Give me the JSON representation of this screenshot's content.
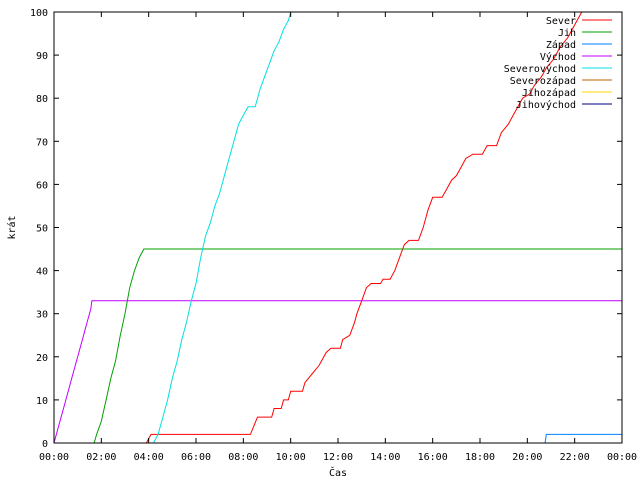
{
  "chart_data": {
    "type": "line",
    "xlabel": "Čas",
    "ylabel": "krát",
    "xlim": [
      0,
      24
    ],
    "ylim": [
      0,
      100
    ],
    "x_ticks": [
      {
        "value": 0,
        "label": "00:00"
      },
      {
        "value": 2,
        "label": "02:00"
      },
      {
        "value": 4,
        "label": "04:00"
      },
      {
        "value": 6,
        "label": "06:00"
      },
      {
        "value": 8,
        "label": "08:00"
      },
      {
        "value": 10,
        "label": "10:00"
      },
      {
        "value": 12,
        "label": "12:00"
      },
      {
        "value": 14,
        "label": "14:00"
      },
      {
        "value": 16,
        "label": "16:00"
      },
      {
        "value": 18,
        "label": "18:00"
      },
      {
        "value": 20,
        "label": "20:00"
      },
      {
        "value": 22,
        "label": "22:00"
      },
      {
        "value": 24,
        "label": "00:00"
      }
    ],
    "y_ticks": [
      {
        "value": 0,
        "label": "0"
      },
      {
        "value": 10,
        "label": "10"
      },
      {
        "value": 20,
        "label": "20"
      },
      {
        "value": 30,
        "label": "30"
      },
      {
        "value": 40,
        "label": "40"
      },
      {
        "value": 50,
        "label": "50"
      },
      {
        "value": 60,
        "label": "60"
      },
      {
        "value": 70,
        "label": "70"
      },
      {
        "value": 80,
        "label": "80"
      },
      {
        "value": 90,
        "label": "90"
      },
      {
        "value": 100,
        "label": "100"
      }
    ],
    "grid": false,
    "legend_position": "top-right",
    "series": [
      {
        "name": "Sever",
        "color": "#ff0000",
        "points": [
          [
            0,
            0
          ],
          [
            3.9,
            0
          ],
          [
            4.1,
            2
          ],
          [
            8.3,
            2
          ],
          [
            8.6,
            6
          ],
          [
            9.2,
            6
          ],
          [
            9.3,
            8
          ],
          [
            9.6,
            8
          ],
          [
            9.7,
            10
          ],
          [
            9.9,
            10
          ],
          [
            10,
            12
          ],
          [
            10.5,
            12
          ],
          [
            10.6,
            14
          ],
          [
            10.9,
            16
          ],
          [
            11.2,
            18
          ],
          [
            11.5,
            21
          ],
          [
            11.7,
            22
          ],
          [
            12.1,
            22
          ],
          [
            12.2,
            24
          ],
          [
            12.5,
            25
          ],
          [
            12.7,
            28
          ],
          [
            12.8,
            30
          ],
          [
            13,
            33
          ],
          [
            13.2,
            36
          ],
          [
            13.4,
            37
          ],
          [
            13.8,
            37
          ],
          [
            13.9,
            38
          ],
          [
            14.2,
            38
          ],
          [
            14.4,
            40
          ],
          [
            14.6,
            43
          ],
          [
            14.8,
            46
          ],
          [
            15,
            47
          ],
          [
            15.4,
            47
          ],
          [
            15.6,
            50
          ],
          [
            15.8,
            54
          ],
          [
            16,
            57
          ],
          [
            16.4,
            57
          ],
          [
            16.6,
            59
          ],
          [
            16.8,
            61
          ],
          [
            17,
            62
          ],
          [
            17.2,
            64
          ],
          [
            17.4,
            66
          ],
          [
            17.7,
            67
          ],
          [
            18.1,
            67
          ],
          [
            18.3,
            69
          ],
          [
            18.7,
            69
          ],
          [
            18.9,
            72
          ],
          [
            19.2,
            74
          ],
          [
            19.4,
            76
          ],
          [
            19.6,
            78
          ],
          [
            19.8,
            80
          ],
          [
            20.1,
            81
          ],
          [
            20.3,
            83
          ],
          [
            20.6,
            85
          ],
          [
            20.8,
            87
          ],
          [
            21.1,
            89
          ],
          [
            21.4,
            92
          ],
          [
            21.7,
            94
          ],
          [
            21.9,
            96
          ],
          [
            22.1,
            98
          ],
          [
            22.3,
            100
          ]
        ]
      },
      {
        "name": "Jih",
        "color": "#00a000",
        "points": [
          [
            0,
            0
          ],
          [
            1.7,
            0
          ],
          [
            1.8,
            2
          ],
          [
            2,
            5
          ],
          [
            2.2,
            10
          ],
          [
            2.4,
            15
          ],
          [
            2.6,
            19
          ],
          [
            2.8,
            25
          ],
          [
            3,
            30
          ],
          [
            3.2,
            36
          ],
          [
            3.4,
            40
          ],
          [
            3.6,
            43
          ],
          [
            3.8,
            45
          ],
          [
            24,
            45
          ]
        ]
      },
      {
        "name": "Západ",
        "color": "#0080ff",
        "points": [
          [
            0,
            0
          ],
          [
            20.75,
            0
          ],
          [
            20.8,
            2
          ],
          [
            24,
            2
          ]
        ]
      },
      {
        "name": "Východ",
        "color": "#c000ff",
        "points": [
          [
            0,
            0
          ],
          [
            0.2,
            4
          ],
          [
            0.4,
            8
          ],
          [
            0.6,
            12
          ],
          [
            0.8,
            16
          ],
          [
            1,
            20
          ],
          [
            1.2,
            24
          ],
          [
            1.4,
            28
          ],
          [
            1.55,
            31
          ],
          [
            1.6,
            33
          ],
          [
            24,
            33
          ]
        ]
      },
      {
        "name": "Severovýchod",
        "color": "#00e0e0",
        "points": [
          [
            0,
            0
          ],
          [
            4.2,
            0
          ],
          [
            4.4,
            2
          ],
          [
            4.6,
            6
          ],
          [
            4.8,
            10
          ],
          [
            5,
            15
          ],
          [
            5.2,
            19
          ],
          [
            5.4,
            24
          ],
          [
            5.6,
            28
          ],
          [
            5.8,
            33
          ],
          [
            6,
            37
          ],
          [
            6.2,
            43
          ],
          [
            6.4,
            48
          ],
          [
            6.6,
            51
          ],
          [
            6.8,
            55
          ],
          [
            7,
            58
          ],
          [
            7.2,
            62
          ],
          [
            7.4,
            66
          ],
          [
            7.6,
            70
          ],
          [
            7.8,
            74
          ],
          [
            8,
            76
          ],
          [
            8.2,
            78
          ],
          [
            8.5,
            78
          ],
          [
            8.7,
            82
          ],
          [
            8.9,
            85
          ],
          [
            9.1,
            88
          ],
          [
            9.3,
            91
          ],
          [
            9.5,
            93
          ],
          [
            9.7,
            96
          ],
          [
            9.9,
            98
          ],
          [
            10,
            100
          ]
        ]
      },
      {
        "name": "Severozápad",
        "color": "#c06000",
        "points": []
      },
      {
        "name": "Jihozápad",
        "color": "#ffd700",
        "points": []
      },
      {
        "name": "Jihovýchod",
        "color": "#000080",
        "points": []
      }
    ]
  }
}
